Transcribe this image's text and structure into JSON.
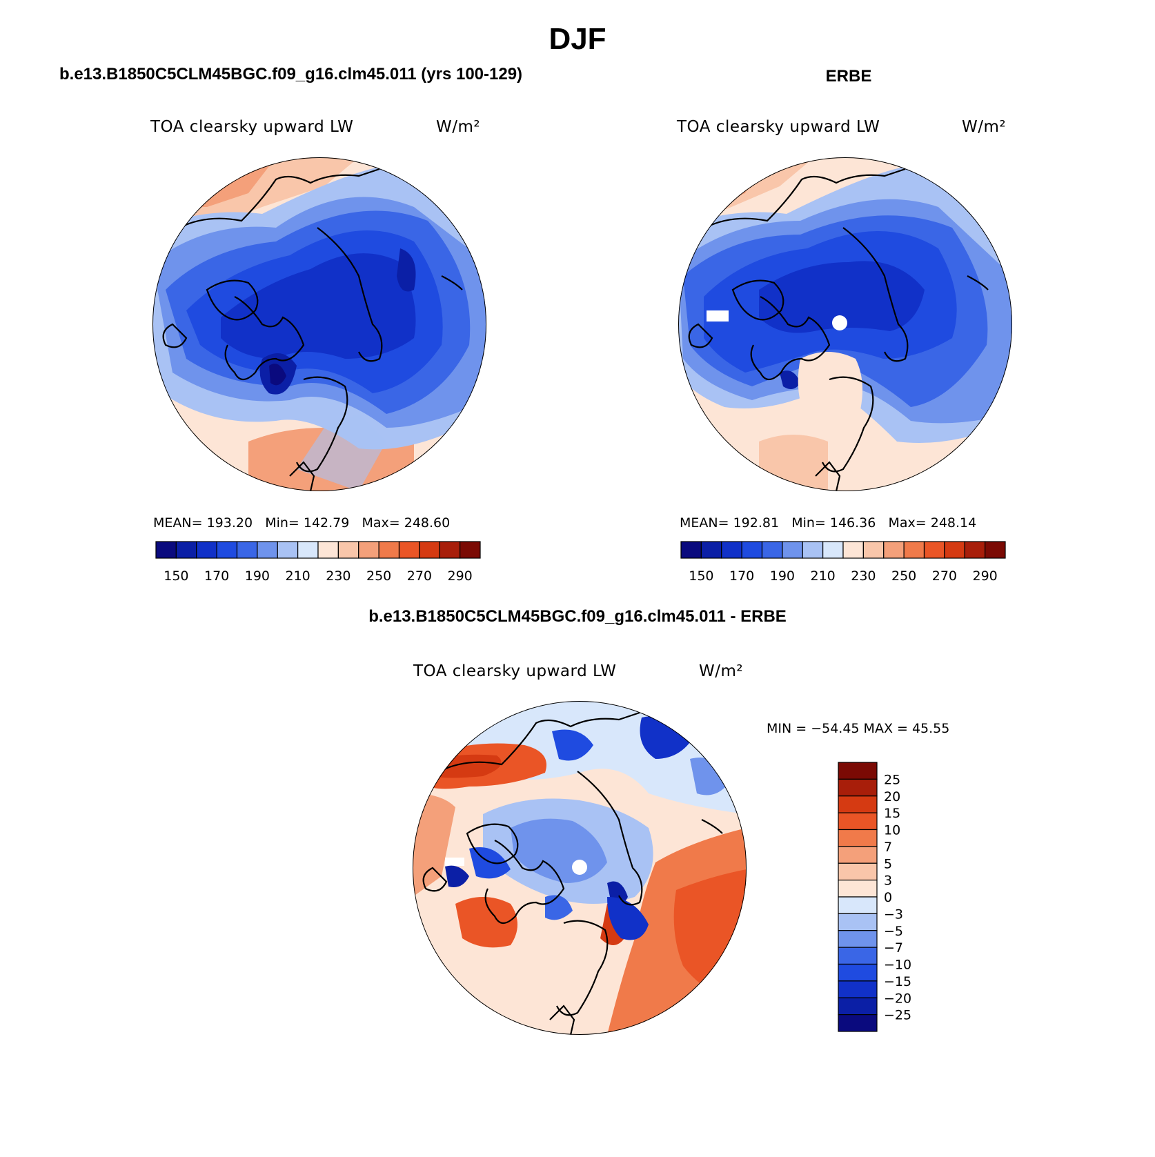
{
  "main_title": "DJF",
  "panels": {
    "left": {
      "title": "b.e13.B1850C5CLM45BGC.f09_g16.clm45.011 (yrs 100-129)",
      "variable": "TOA clearsky upward LW",
      "units": "W/m²",
      "mean_label": "MEAN=",
      "mean": "193.20",
      "min_label": "Min=",
      "min": "142.79",
      "max_label": "Max=",
      "max": "248.60"
    },
    "right": {
      "title": "ERBE",
      "variable": "TOA clearsky upward LW",
      "units": "W/m²",
      "mean_label": "MEAN=",
      "mean": "192.81",
      "min_label": "Min=",
      "min": "146.36",
      "max_label": "Max=",
      "max": "248.14"
    },
    "diff": {
      "title": "b.e13.B1850C5CLM45BGC.f09_g16.clm45.011 - ERBE",
      "variable": "TOA clearsky upward LW",
      "units": "W/m²",
      "minmax_text": "MIN = −54.45 MAX =  45.55"
    }
  },
  "chart_data": [
    {
      "type": "heatmap",
      "projection": "north-polar-stereographic",
      "title": "b.e13.B1850C5CLM45BGC.f09_g16.clm45.011 (yrs 100-129)",
      "field": "TOA clearsky upward LW",
      "units": "W/m²",
      "mean": 193.2,
      "min": 142.79,
      "max": 248.6,
      "colorbar_levels": [
        140,
        150,
        160,
        170,
        180,
        190,
        200,
        210,
        220,
        230,
        240,
        250,
        260,
        270,
        280,
        290,
        300
      ],
      "colorbar_tick_labels": [
        "150",
        "170",
        "190",
        "210",
        "230",
        "250",
        "270",
        "290"
      ],
      "colors": [
        "#0a0a7e",
        "#0b1fa6",
        "#1131c8",
        "#1f4be0",
        "#3a66e6",
        "#6f93ec",
        "#a9c2f4",
        "#d8e7fb",
        "#fde5d6",
        "#f9c6aa",
        "#f4a07a",
        "#f07a4a",
        "#ea5526",
        "#d53a12",
        "#a81e0a",
        "#7b0a04"
      ]
    },
    {
      "type": "heatmap",
      "projection": "north-polar-stereographic",
      "title": "ERBE",
      "field": "TOA clearsky upward LW",
      "units": "W/m²",
      "mean": 192.81,
      "min": 146.36,
      "max": 248.14,
      "colorbar_levels": [
        140,
        150,
        160,
        170,
        180,
        190,
        200,
        210,
        220,
        230,
        240,
        250,
        260,
        270,
        280,
        290,
        300
      ],
      "colorbar_tick_labels": [
        "150",
        "170",
        "190",
        "210",
        "230",
        "250",
        "270",
        "290"
      ],
      "colors": [
        "#0a0a7e",
        "#0b1fa6",
        "#1131c8",
        "#1f4be0",
        "#3a66e6",
        "#6f93ec",
        "#a9c2f4",
        "#d8e7fb",
        "#fde5d6",
        "#f9c6aa",
        "#f4a07a",
        "#f07a4a",
        "#ea5526",
        "#d53a12",
        "#a81e0a",
        "#7b0a04"
      ]
    },
    {
      "type": "heatmap",
      "projection": "north-polar-stereographic",
      "title": "b.e13.B1850C5CLM45BGC.f09_g16.clm45.011 - ERBE",
      "field": "TOA clearsky upward LW",
      "units": "W/m²",
      "min": -54.45,
      "max": 45.55,
      "colorbar_tick_labels": [
        "25",
        "20",
        "15",
        "10",
        "7",
        "5",
        "3",
        "0",
        "−3",
        "−5",
        "−7",
        "−10",
        "−15",
        "−20",
        "−25"
      ],
      "colors": [
        "#7b0a04",
        "#a81e0a",
        "#d53a12",
        "#ea5526",
        "#f07a4a",
        "#f4a07a",
        "#f9c6aa",
        "#fde5d6",
        "#d8e7fb",
        "#a9c2f4",
        "#6f93ec",
        "#3a66e6",
        "#1f4be0",
        "#1131c8",
        "#0b1fa6",
        "#0a0a7e"
      ]
    }
  ]
}
